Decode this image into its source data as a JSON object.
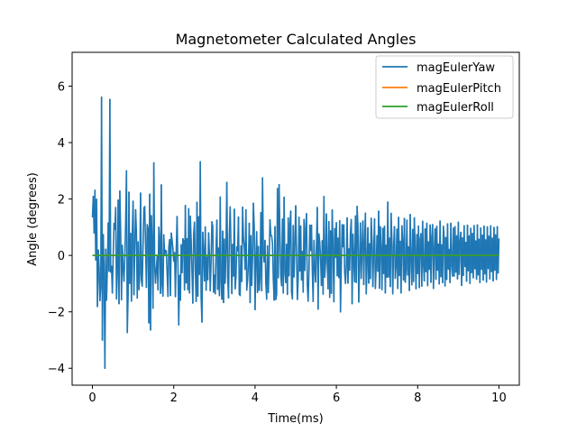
{
  "chart_data": {
    "type": "line",
    "title": "Magnetometer Calculated Angles",
    "xlabel": "Time(ms)",
    "ylabel": "Angle (degrees)",
    "xlim": [
      -0.5,
      10.5
    ],
    "ylim": [
      -4.6,
      7.2
    ],
    "xticks": [
      0,
      2,
      4,
      6,
      8,
      10
    ],
    "xtick_labels": [
      "0",
      "2",
      "4",
      "6",
      "8",
      "10"
    ],
    "yticks": [
      -4,
      -2,
      0,
      2,
      4,
      6
    ],
    "ytick_labels": [
      "−4",
      "−2",
      "0",
      "2",
      "4",
      "6"
    ],
    "grid": false,
    "legend_position": "top-right",
    "x_range": [
      0,
      10
    ],
    "n_points": 500,
    "series": [
      {
        "name": "magEulerYaw",
        "color": "#1f77b4",
        "values": [
          1.37,
          2.09,
          0.8,
          2.31,
          -0.16,
          1.99,
          -1.81,
          0.19,
          -0.43,
          -1.6,
          -1.12,
          5.61,
          -3.0,
          0.74,
          -0.6,
          -4.0,
          0.22,
          -1.58,
          -0.39,
          1.15,
          -0.56,
          5.53,
          -0.59,
          -0.39,
          -1.33,
          -0.07,
          1.13,
          0.93,
          1.7,
          -1.54,
          -0.59,
          1.96,
          -1.71,
          2.28,
          0.84,
          -1.57,
          0.36,
          -0.43,
          -0.91,
          -0.05,
          1.12,
          3.0,
          -2.73,
          -1.37,
          2.24,
          -0.99,
          0.78,
          -1.62,
          0.74,
          1.92,
          -1.39,
          0.23,
          1.62,
          0.83,
          -1.51,
          0.48,
          -1.21,
          -0.63,
          2.21,
          -0.88,
          -1.09,
          0.38,
          1.68,
          1.73,
          0.46,
          -1.13,
          1.09,
          0.96,
          -2.39,
          2.17,
          -2.64,
          1.41,
          0.54,
          -1.87,
          3.28,
          -0.37,
          -0.98,
          -0.49,
          -0.05,
          -1.22,
          1.0,
          0.54,
          -1.34,
          2.5,
          -1.03,
          -1.44,
          0.73,
          0.02,
          0.18,
          0.16,
          -0.61,
          -1.45,
          0.28,
          0.56,
          -1.42,
          0.79,
          0.55,
          0.24,
          -0.2,
          0.1,
          -1.46,
          0.16,
          1.38,
          -0.25,
          -2.46,
          -0.71,
          -1.58,
          0.38,
          -0.61,
          0.59,
          0.52,
          -1.22,
          1.77,
          -0.97,
          0.59,
          -1.21,
          1.66,
          -1.33,
          1.39,
          0.51,
          -0.57,
          -1.69,
          0.75,
          1.18,
          -0.53,
          -1.63,
          1.88,
          -1.44,
          1.37,
          -0.67,
          3.32,
          -1.47,
          -2.36,
          0.82,
          0.1,
          -0.9,
          1.01,
          -1.23,
          -0.06,
          -0.86,
          0.8,
          0.07,
          -1.25,
          -0.21,
          1.19,
          1.04,
          -1.3,
          -0.7,
          -1.36,
          0.22,
          1.25,
          -1.2,
          0.26,
          -1.42,
          2.07,
          -0.92,
          -1.55,
          0.86,
          -1.67,
          0.58,
          -0.98,
          0.29,
          2.59,
          -0.74,
          -1.5,
          0.68,
          1.72,
          0.31,
          -1.35,
          0.39,
          -0.73,
          1.64,
          -1.18,
          -0.76,
          0.3,
          0.17,
          1.36,
          -1.37,
          -1.42,
          0.33,
          -0.92,
          1.71,
          0.6,
          0.32,
          -0.49,
          1.62,
          -1.23,
          -0.87,
          -0.3,
          1.14,
          -1.67,
          0.7,
          -1.06,
          -0.03,
          1.85,
          0.98,
          -1.92,
          -0.07,
          0.84,
          -1.31,
          0.32,
          -1.23,
          -0.78,
          1.52,
          -1.25,
          2.75,
          0.12,
          -0.23,
          0.53,
          -0.98,
          -1.55,
          0.34,
          -1.31,
          -0.1,
          1.26,
          0.71,
          0.69,
          0.42,
          -0.83,
          -1.58,
          1.02,
          -1.56,
          -1.38,
          2.37,
          -0.79,
          2.51,
          0.7,
          -0.69,
          -1.07,
          1.29,
          -1.33,
          2.06,
          -0.58,
          -0.96,
          0.39,
          -1.38,
          1.33,
          -0.72,
          1.11,
          1.57,
          -1.3,
          -1.54,
          1.06,
          -0.76,
          0.42,
          1.76,
          0.05,
          -1.56,
          -0.81,
          1.35,
          -0.55,
          1.04,
          -0.87,
          0.14,
          -1.3,
          1.27,
          -0.53,
          0.93,
          1.48,
          -1.06,
          -1.62,
          -0.51,
          1.07,
          0.18,
          1.07,
          -0.48,
          -1.63,
          0.53,
          -0.44,
          -0.94,
          0.32,
          1.7,
          -1.9,
          0.76,
          0.45,
          -0.13,
          -1.06,
          0.52,
          -1.37,
          2.09,
          -0.77,
          -0.22,
          1.47,
          -0.27,
          -1.18,
          1.2,
          -1.49,
          0.87,
          -1.34,
          1.61,
          0.25,
          -1.64,
          0.95,
          -0.06,
          1.16,
          -0.72,
          0.61,
          -0.78,
          1.23,
          -2.0,
          -0.25,
          1.09,
          0.31,
          1.08,
          -0.58,
          -0.99,
          -0.37,
          1.33,
          -0.98,
          0.23,
          -0.52,
          0.81,
          1.27,
          -1.71,
          0.75,
          -0.13,
          -0.93,
          1.4,
          -0.96,
          1.74,
          1.04,
          -1.65,
          -0.26,
          1.15,
          -0.81,
          0.27,
          1.22,
          -1.03,
          0.47,
          1.5,
          -1.36,
          -0.31,
          0.98,
          -0.98,
          0.41,
          -0.82,
          1.32,
          0.51,
          -1.1,
          0.14,
          1.29,
          -1.17,
          -0.39,
          0.7,
          -0.56,
          1.57,
          -1.16,
          1.02,
          0.2,
          -1.21,
          0.96,
          -0.64,
          1.03,
          -1.33,
          0.36,
          -0.77,
          1.89,
          -0.76,
          0.61,
          -1.1,
          1.49,
          0.46,
          -1.36,
          0.29,
          1.02,
          -0.81,
          -0.35,
          0.93,
          -1.17,
          1.35,
          -0.71,
          0.5,
          -1.33,
          1.05,
          0.48,
          -0.87,
          1.31,
          -0.95,
          -0.5,
          1.25,
          -0.69,
          0.3,
          -1.24,
          1.45,
          -0.19,
          -1.04,
          0.92,
          -0.92,
          1.33,
          0.2,
          -1.18,
          0.74,
          -0.64,
          1.04,
          -1.14,
          0.56,
          0.77,
          -1.09,
          1.21,
          -0.3,
          -0.9,
          0.94,
          -0.57,
          1.14,
          -1.07,
          0.48,
          -0.49,
          1.08,
          -0.95,
          0.64,
          1.09,
          -1.17,
          0.12,
          0.94,
          -0.84,
          1.03,
          -0.52,
          0.4,
          -1.01,
          1.22,
          -0.75,
          0.37,
          -0.96,
          1.03,
          0.61,
          -1.08,
          0.63,
          -0.85,
          1.12,
          -0.48,
          0.21,
          -0.96,
          1.14,
          -0.36,
          -0.73,
          0.97,
          -0.73,
          1.02,
          -0.59,
          0.69,
          -0.83,
          1.18,
          -0.67,
          0.45,
          0.82,
          -1.06,
          0.62,
          -0.71,
          1.05,
          -0.39,
          0.46,
          -0.91,
          1.07,
          -0.54,
          0.69,
          -0.99,
          0.96,
          -0.61,
          0.78,
          -0.79,
          1.06,
          -0.47,
          0.51,
          -0.84,
          1.08,
          -0.69,
          0.57,
          -0.96,
          0.97,
          -0.49,
          0.72,
          -0.87,
          1.04,
          -0.65,
          0.55,
          -0.94,
          1.01,
          -0.46,
          0.68,
          -0.83,
          1.05,
          -0.57,
          0.61,
          -0.9,
          0.99,
          -0.52,
          0.73,
          -0.85,
          1.02,
          -0.62,
          0.58
        ],
        "note": "high-frequency noise, peaks near 6.6, troughs near -4.1"
      },
      {
        "name": "magEulerPitch",
        "color": "#ff7f0e",
        "values": [
          0,
          0
        ],
        "x": [
          0,
          10
        ]
      },
      {
        "name": "magEulerRoll",
        "color": "#2ca02c",
        "values": [
          0,
          0
        ],
        "x": [
          0,
          10
        ]
      }
    ]
  }
}
